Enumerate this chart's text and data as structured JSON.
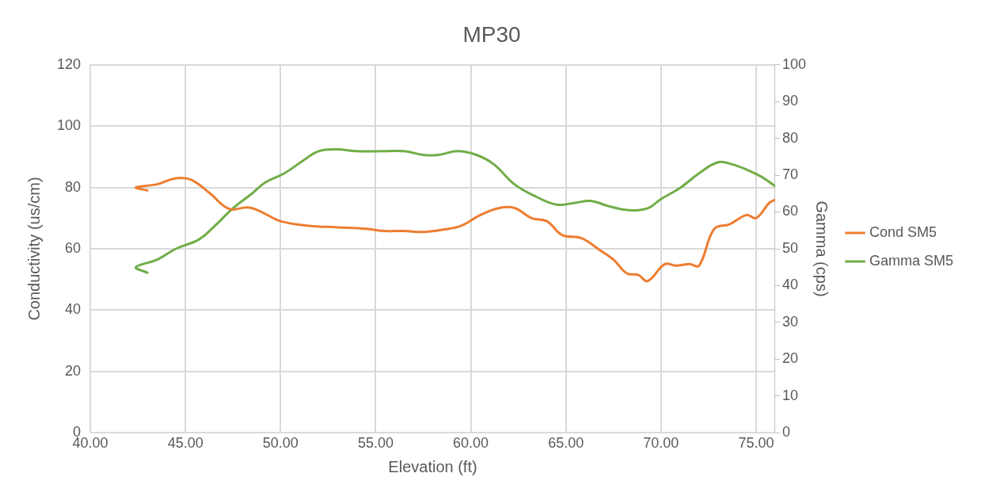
{
  "chart_data": {
    "type": "line",
    "title": "MP30",
    "xlabel": "Elevation (ft)",
    "ylabel": "Conductivity (us/cm)",
    "y2label": "Gamma (cps)",
    "xlim": [
      40,
      76
    ],
    "xticks": [
      {
        "value": 40,
        "label": "40.00"
      },
      {
        "value": 45,
        "label": "45.00"
      },
      {
        "value": 50,
        "label": "50.00"
      },
      {
        "value": 55,
        "label": "55.00"
      },
      {
        "value": 60,
        "label": "60.00"
      },
      {
        "value": 65,
        "label": "65.00"
      },
      {
        "value": 70,
        "label": "70.00"
      },
      {
        "value": 75,
        "label": "75.00"
      }
    ],
    "ylim": [
      0,
      120
    ],
    "yticks": [
      0,
      20,
      40,
      60,
      80,
      100,
      120
    ],
    "y2lim": [
      0,
      100
    ],
    "y2ticks": [
      0,
      10,
      20,
      30,
      40,
      50,
      60,
      70,
      80,
      90,
      100
    ],
    "grid": true,
    "legend": "right",
    "marker": "none",
    "line_style": "solid",
    "series": [
      {
        "name": "Cond SM5",
        "color": "#ed7d31",
        "x": [
          43.0,
          42.4,
          43.5,
          44.5,
          45.3,
          46.3,
          47.3,
          48.3,
          49.0,
          50.0,
          51.5,
          53.0,
          54.5,
          55.5,
          56.5,
          57.5,
          58.5,
          59.5,
          60.5,
          61.5,
          62.3,
          63.2,
          64.0,
          64.8,
          65.8,
          66.8,
          67.5,
          68.2,
          68.8,
          69.3,
          70.2,
          70.8,
          71.5,
          72.0,
          72.8,
          73.6,
          74.5,
          75.0,
          75.7,
          76.0
        ],
        "values": [
          79,
          80,
          81,
          83,
          82.5,
          78,
          73,
          73.5,
          72,
          69,
          67.5,
          67,
          66.5,
          65.8,
          65.8,
          65.5,
          66.2,
          67.5,
          71,
          73.3,
          73.3,
          70,
          69,
          64.5,
          63.5,
          59.5,
          56.5,
          52,
          51.5,
          49.5,
          55,
          54.5,
          55,
          54.5,
          66.5,
          68,
          71,
          70,
          75,
          76
        ]
      },
      {
        "name": "Gamma SM5",
        "color": "#70ad47",
        "axis": "y2",
        "x": [
          43.0,
          42.4,
          43.5,
          44.5,
          45.7,
          46.5,
          47.5,
          48.5,
          49.2,
          50.2,
          51.2,
          52.0,
          53.0,
          54.0,
          55.5,
          56.5,
          57.5,
          58.3,
          59.3,
          60.3,
          61.2,
          62.3,
          63.3,
          64.5,
          65.5,
          66.3,
          67.3,
          68.3,
          69.3,
          70.0,
          71.0,
          72.0,
          73.0,
          73.7,
          74.5,
          75.3,
          76.0
        ],
        "values": [
          43.5,
          45,
          47,
          50,
          52.5,
          56,
          61,
          65,
          68,
          70.5,
          74,
          76.5,
          77,
          76.5,
          76.5,
          76.5,
          75.5,
          75.5,
          76.5,
          75.5,
          73,
          67.5,
          64.5,
          62,
          62.5,
          63,
          61.5,
          60.5,
          61,
          63.5,
          66.5,
          70.5,
          73.5,
          73,
          71.5,
          69.5,
          67
        ]
      }
    ]
  }
}
